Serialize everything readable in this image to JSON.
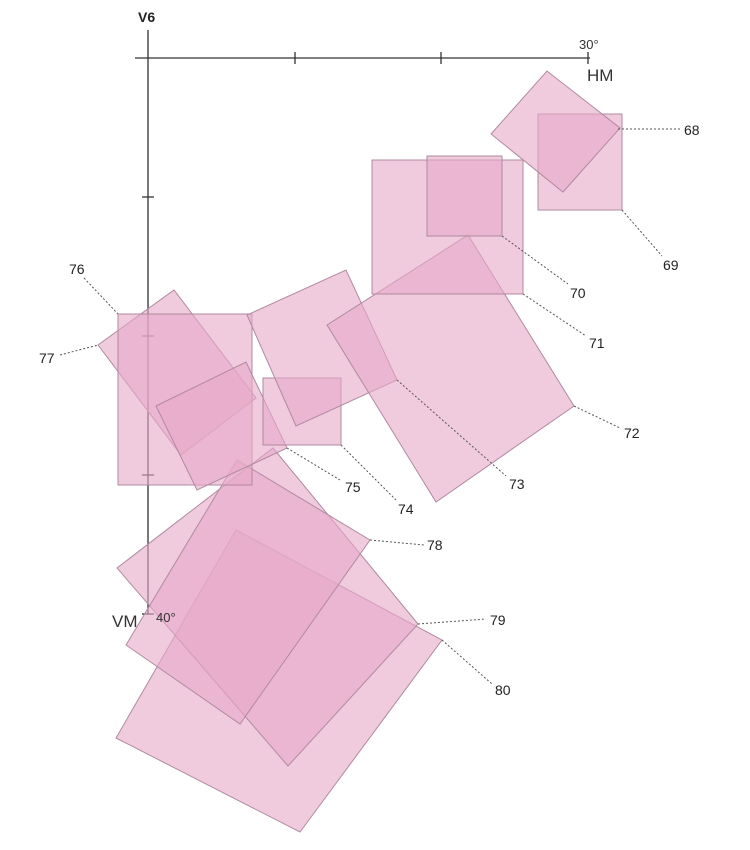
{
  "axes": {
    "vertical_label": "V6",
    "horizontal_meridian_label": "HM",
    "vertical_meridian_label": "VM",
    "h_end_tick": "30°",
    "v_end_tick": "40°"
  },
  "fields": [
    {
      "id": "68",
      "label": "68"
    },
    {
      "id": "69",
      "label": "69"
    },
    {
      "id": "70",
      "label": "70"
    },
    {
      "id": "71",
      "label": "71"
    },
    {
      "id": "72",
      "label": "72"
    },
    {
      "id": "73",
      "label": "73"
    },
    {
      "id": "74",
      "label": "74"
    },
    {
      "id": "75",
      "label": "75"
    },
    {
      "id": "76",
      "label": "76"
    },
    {
      "id": "77",
      "label": "77"
    },
    {
      "id": "78",
      "label": "78"
    },
    {
      "id": "79",
      "label": "79"
    },
    {
      "id": "80",
      "label": "80"
    }
  ],
  "colors": {
    "field_fill": "#e6a8c8",
    "field_stroke": "#b08aa0"
  }
}
